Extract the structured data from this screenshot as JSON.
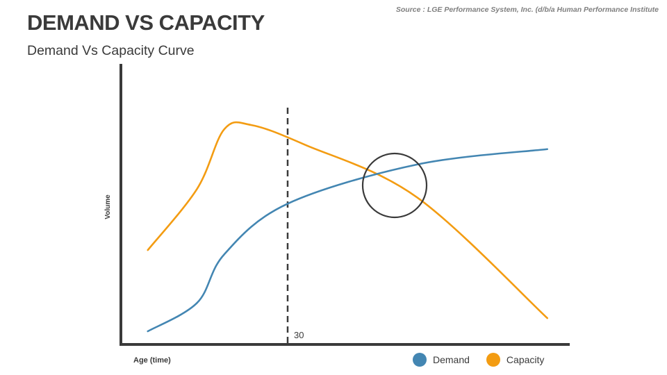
{
  "header": {
    "source": "Source : LGE Performance System, Inc. (d/b/a Human Performance Institute",
    "title": "DEMAND VS CAPACITY",
    "subtitle": "Demand Vs Capacity Curve"
  },
  "colors": {
    "demand": "#4386b2",
    "capacity": "#f39c12",
    "axis": "#3a3a3a"
  },
  "chart_data": {
    "type": "line",
    "title": "",
    "xlabel": "Age (time)",
    "ylabel": "Volume",
    "marker_label": "30",
    "series": [
      {
        "name": "Demand",
        "points": [
          [
            0.06,
            0.06
          ],
          [
            0.17,
            0.19
          ],
          [
            0.23,
            0.41
          ],
          [
            0.37,
            0.64
          ],
          [
            0.66,
            0.82
          ],
          [
            0.95,
            0.89
          ]
        ]
      },
      {
        "name": "Capacity",
        "points": [
          [
            0.06,
            0.43
          ],
          [
            0.17,
            0.71
          ],
          [
            0.23,
            0.98
          ],
          [
            0.29,
            1.0
          ],
          [
            0.41,
            0.91
          ],
          [
            0.66,
            0.67
          ],
          [
            0.95,
            0.12
          ]
        ]
      }
    ],
    "legend": [
      "Demand",
      "Capacity"
    ],
    "legend_position": "bottom-right",
    "grid": false
  }
}
